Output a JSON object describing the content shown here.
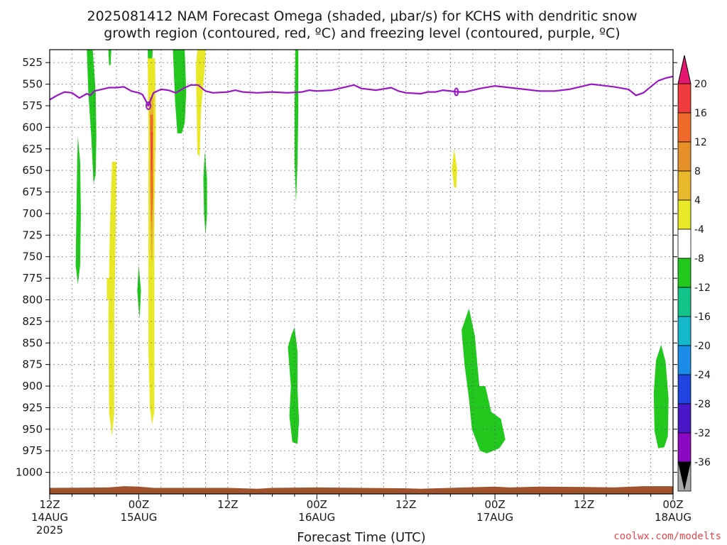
{
  "title": {
    "line1": "2025081412 NAM Forecast Omega (shaded, μbar/s) for KCHS with dendritic snow",
    "line2": "growth region (contoured, red, ºC) and freezing level (contoured, purple, ºC)"
  },
  "credit": {
    "text": "coolwx.com/modelts",
    "color": "#e8474d"
  },
  "colors": {
    "freezing_level": "#9a16c4",
    "terrain": "#a0522d",
    "grid": "#555555"
  },
  "chart_data": {
    "type": "heatmap",
    "xlabel": "Forecast Time (UTC)",
    "x_range_hours": [
      0,
      84
    ],
    "y_range_hPa": [
      1025,
      510
    ],
    "y_ticks": [
      525,
      550,
      575,
      600,
      625,
      650,
      675,
      700,
      725,
      750,
      775,
      800,
      825,
      850,
      875,
      900,
      925,
      950,
      975,
      1000
    ],
    "x_ticks": [
      {
        "hour": 0,
        "line1": "12Z",
        "line2": "14AUG",
        "line3": "2025"
      },
      {
        "hour": 12,
        "line1": "00Z",
        "line2": "15AUG",
        "line3": ""
      },
      {
        "hour": 24,
        "line1": "12Z",
        "line2": "",
        "line3": ""
      },
      {
        "hour": 36,
        "line1": "00Z",
        "line2": "16AUG",
        "line3": ""
      },
      {
        "hour": 48,
        "line1": "12Z",
        "line2": "",
        "line3": ""
      },
      {
        "hour": 60,
        "line1": "00Z",
        "line2": "17AUG",
        "line3": ""
      },
      {
        "hour": 72,
        "line1": "12Z",
        "line2": "",
        "line3": ""
      },
      {
        "hour": 84,
        "line1": "00Z",
        "line2": "18AUG",
        "line3": ""
      }
    ],
    "grid": true,
    "colorbar": {
      "labels": [
        "20",
        "16",
        "12",
        "8",
        "4",
        "-4",
        "-8",
        "-12",
        "-16",
        "-20",
        "-24",
        "-28",
        "-32",
        "-36"
      ],
      "bins": [
        {
          "color": "#e8e826"
        },
        {
          "color": "#e8b82c"
        },
        {
          "color": "#e8902a"
        },
        {
          "color": "#f06a2c"
        },
        {
          "color": "#f03c3c"
        },
        {
          "color": "#e51670"
        }
      ],
      "neg_bins": [
        {
          "color": "#ffffff"
        },
        {
          "color": "#22c81e"
        },
        {
          "color": "#12c48a"
        },
        {
          "color": "#14b8c8"
        },
        {
          "color": "#1a8ce8"
        },
        {
          "color": "#1f44e0"
        },
        {
          "color": "#4a18c8"
        },
        {
          "color": "#8a0ac4"
        },
        {
          "color": "#a8a8a8"
        }
      ]
    },
    "freezing_level_hPa": [
      [
        0,
        568
      ],
      [
        1,
        563
      ],
      [
        2,
        559
      ],
      [
        3,
        560
      ],
      [
        4,
        566
      ],
      [
        5,
        561
      ],
      [
        5.5,
        563
      ],
      [
        6,
        558
      ],
      [
        7,
        556
      ],
      [
        8,
        554
      ],
      [
        9,
        554
      ],
      [
        10,
        553
      ],
      [
        11,
        558
      ],
      [
        12,
        560
      ],
      [
        12.5,
        562
      ],
      [
        13,
        570
      ],
      [
        13.3,
        575
      ],
      [
        13.6,
        568
      ],
      [
        14,
        560
      ],
      [
        15,
        556
      ],
      [
        16,
        557
      ],
      [
        17,
        560
      ],
      [
        18,
        555
      ],
      [
        19,
        551
      ],
      [
        20,
        551
      ],
      [
        21,
        558
      ],
      [
        22,
        560
      ],
      [
        24,
        559
      ],
      [
        25,
        557
      ],
      [
        26,
        559
      ],
      [
        28,
        560
      ],
      [
        30,
        559
      ],
      [
        32,
        560
      ],
      [
        34,
        559
      ],
      [
        35,
        557
      ],
      [
        36,
        558
      ],
      [
        38,
        557
      ],
      [
        40,
        553
      ],
      [
        41,
        551
      ],
      [
        42,
        555
      ],
      [
        44,
        557
      ],
      [
        46,
        554
      ],
      [
        47,
        558
      ],
      [
        48,
        560
      ],
      [
        50,
        561
      ],
      [
        51,
        559
      ],
      [
        52,
        559
      ],
      [
        53,
        557
      ],
      [
        55,
        559
      ],
      [
        56,
        559
      ],
      [
        58,
        555
      ],
      [
        60,
        552
      ],
      [
        62,
        554
      ],
      [
        64,
        556
      ],
      [
        66,
        558
      ],
      [
        68,
        558
      ],
      [
        70,
        556
      ],
      [
        72,
        552
      ],
      [
        73,
        550
      ],
      [
        74,
        551
      ],
      [
        76,
        553
      ],
      [
        78,
        556
      ],
      [
        79,
        563
      ],
      [
        80,
        560
      ],
      [
        81,
        553
      ],
      [
        82,
        546
      ],
      [
        83,
        543
      ],
      [
        84,
        541
      ]
    ],
    "omega_regions": [
      {
        "value": -6,
        "color": "#22c81e",
        "pts": [
          [
            5.0,
            510
          ],
          [
            5.8,
            510
          ],
          [
            6.2,
            560
          ],
          [
            6.3,
            610
          ],
          [
            6.2,
            655
          ],
          [
            5.9,
            665
          ],
          [
            5.6,
            610
          ],
          [
            5.2,
            560
          ]
        ]
      },
      {
        "value": -6,
        "color": "#22c81e",
        "pts": [
          [
            7.9,
            510
          ],
          [
            8.3,
            510
          ],
          [
            8.2,
            528
          ],
          [
            8.0,
            528
          ]
        ]
      },
      {
        "value": -6,
        "color": "#22c81e",
        "pts": [
          [
            3.8,
            610
          ],
          [
            4.1,
            640
          ],
          [
            4.2,
            700
          ],
          [
            4.1,
            760
          ],
          [
            3.8,
            782
          ],
          [
            3.5,
            760
          ],
          [
            3.6,
            700
          ],
          [
            3.7,
            640
          ]
        ]
      },
      {
        "value": -6,
        "color": "#22c81e",
        "pts": [
          [
            12.0,
            760
          ],
          [
            12.3,
            790
          ],
          [
            12.1,
            822
          ],
          [
            11.8,
            790
          ]
        ]
      },
      {
        "value": -6,
        "color": "#22c81e",
        "pts": [
          [
            13.2,
            510
          ],
          [
            13.9,
            510
          ],
          [
            13.6,
            545
          ],
          [
            13.3,
            545
          ]
        ]
      },
      {
        "value": -6,
        "color": "#22c81e",
        "pts": [
          [
            16.6,
            510
          ],
          [
            18.2,
            510
          ],
          [
            18.4,
            560
          ],
          [
            18.2,
            595
          ],
          [
            17.8,
            607
          ],
          [
            17.2,
            607
          ],
          [
            16.9,
            570
          ],
          [
            16.7,
            530
          ]
        ]
      },
      {
        "value": -6,
        "color": "#22c81e",
        "pts": [
          [
            20.9,
            628
          ],
          [
            21.2,
            660
          ],
          [
            21.2,
            700
          ],
          [
            21.0,
            725
          ],
          [
            20.8,
            700
          ],
          [
            20.7,
            660
          ]
        ]
      },
      {
        "value": -6,
        "color": "#22c81e",
        "pts": [
          [
            33.1,
            510
          ],
          [
            33.5,
            510
          ],
          [
            33.5,
            580
          ],
          [
            33.4,
            640
          ],
          [
            33.2,
            687
          ],
          [
            33.0,
            640
          ],
          [
            33.0,
            580
          ]
        ]
      },
      {
        "value": -6,
        "color": "#22c81e",
        "pts": [
          [
            33.0,
            832
          ],
          [
            33.4,
            860
          ],
          [
            33.4,
            905
          ],
          [
            33.6,
            940
          ],
          [
            33.4,
            967
          ],
          [
            32.7,
            965
          ],
          [
            32.3,
            935
          ],
          [
            32.5,
            900
          ],
          [
            32.1,
            855
          ],
          [
            32.6,
            840
          ]
        ]
      },
      {
        "value": -6,
        "color": "#22c81e",
        "pts": [
          [
            56.5,
            810
          ],
          [
            57.3,
            842
          ],
          [
            57.5,
            862
          ],
          [
            57.9,
            900
          ],
          [
            58.7,
            900
          ],
          [
            59.5,
            930
          ],
          [
            60.8,
            938
          ],
          [
            61.4,
            962
          ],
          [
            60.6,
            972
          ],
          [
            58.9,
            978
          ],
          [
            58.0,
            975
          ],
          [
            56.9,
            950
          ],
          [
            56.5,
            915
          ],
          [
            55.9,
            875
          ],
          [
            55.5,
            835
          ]
        ]
      },
      {
        "value": -6,
        "color": "#22c81e",
        "pts": [
          [
            82.4,
            852
          ],
          [
            83.0,
            872
          ],
          [
            83.4,
            915
          ],
          [
            83.3,
            958
          ],
          [
            82.8,
            971
          ],
          [
            82.0,
            972
          ],
          [
            81.5,
            952
          ],
          [
            81.4,
            908
          ],
          [
            81.7,
            870
          ]
        ]
      },
      {
        "value": 6,
        "color": "#e8e826",
        "pts": [
          [
            8.4,
            640
          ],
          [
            9.0,
            640
          ],
          [
            8.9,
            720
          ],
          [
            8.7,
            820
          ],
          [
            8.7,
            930
          ],
          [
            8.4,
            958
          ],
          [
            8.0,
            930
          ],
          [
            7.9,
            820
          ],
          [
            8.1,
            720
          ]
        ]
      },
      {
        "value": 6,
        "color": "#e8e826",
        "pts": [
          [
            13.2,
            520
          ],
          [
            14.2,
            520
          ],
          [
            14.3,
            600
          ],
          [
            14.1,
            700
          ],
          [
            14.1,
            860
          ],
          [
            14.1,
            930
          ],
          [
            13.8,
            945
          ],
          [
            13.5,
            925
          ],
          [
            13.3,
            860
          ],
          [
            13.3,
            700
          ],
          [
            13.3,
            600
          ]
        ]
      },
      {
        "value": 6,
        "color": "#e8e826",
        "pts": [
          [
            19.9,
            510
          ],
          [
            21.0,
            510
          ],
          [
            20.9,
            530
          ],
          [
            20.4,
            580
          ],
          [
            20.2,
            635
          ],
          [
            19.9,
            630
          ],
          [
            19.8,
            580
          ],
          [
            19.7,
            530
          ]
        ]
      },
      {
        "value": 6,
        "color": "#e8e826",
        "pts": [
          [
            54.5,
            625
          ],
          [
            54.9,
            648
          ],
          [
            54.8,
            670
          ],
          [
            54.5,
            670
          ],
          [
            54.2,
            648
          ]
        ]
      },
      {
        "value": 6,
        "color": "#e8e826",
        "pts": [
          [
            7.7,
            775
          ],
          [
            8.1,
            775
          ],
          [
            8.1,
            800
          ],
          [
            7.7,
            800
          ]
        ]
      },
      {
        "value": 10,
        "color": "#e8b82c",
        "pts": [
          [
            13.45,
            565
          ],
          [
            14.0,
            565
          ],
          [
            14.0,
            710
          ],
          [
            13.8,
            760
          ],
          [
            13.6,
            740
          ],
          [
            13.5,
            680
          ]
        ]
      },
      {
        "value": 14,
        "color": "#f06a2c",
        "pts": [
          [
            13.55,
            585
          ],
          [
            13.9,
            585
          ],
          [
            13.9,
            680
          ],
          [
            13.7,
            720
          ],
          [
            13.6,
            660
          ]
        ]
      },
      {
        "value": 18,
        "color": "#f03c3c",
        "pts": [
          [
            13.65,
            605
          ],
          [
            13.85,
            605
          ],
          [
            13.8,
            650
          ],
          [
            13.7,
            650
          ]
        ]
      }
    ]
  }
}
